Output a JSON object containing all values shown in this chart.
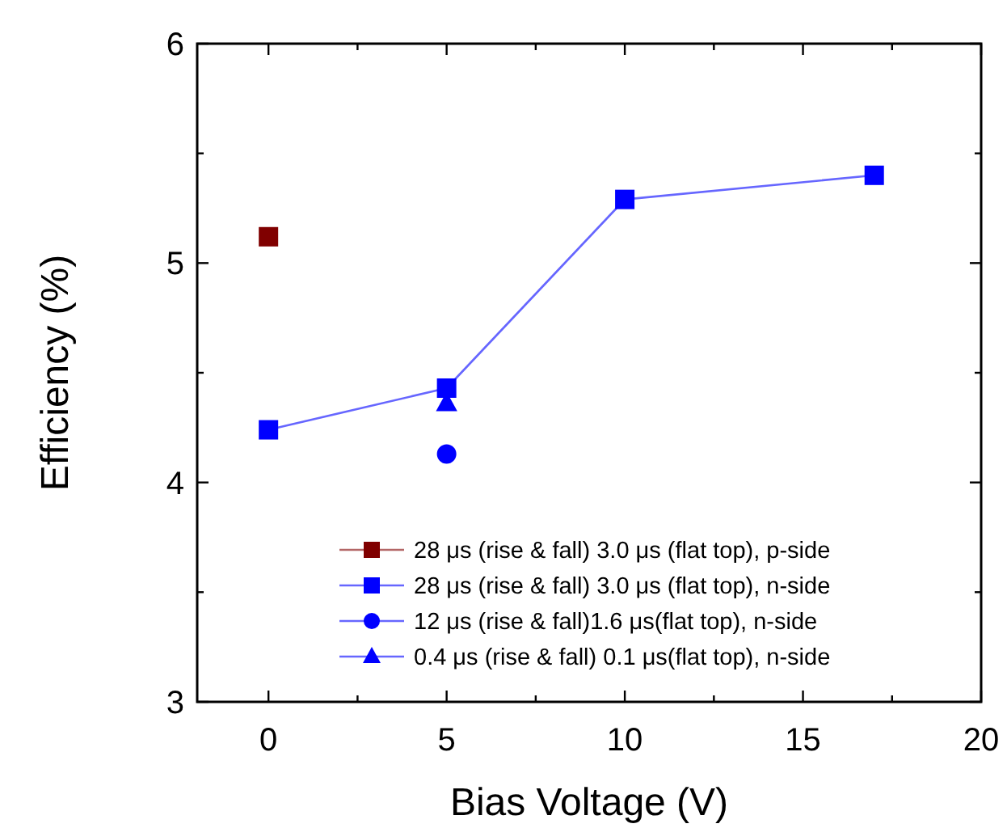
{
  "chart_data": {
    "type": "line",
    "xlabel": "Bias Voltage (V)",
    "ylabel": "Efficiency (%)",
    "xlim": [
      -2,
      20
    ],
    "xticks": [
      0,
      {
        "value": 2.5,
        "label": null
      },
      5,
      {
        "value": 7.5,
        "label": null
      },
      10,
      {
        "value": 12.5,
        "label": null
      },
      15,
      {
        "value": 17.5,
        "label": null
      },
      20
    ],
    "ylim": [
      3,
      6
    ],
    "yticks": [
      3,
      {
        "value": 3.5,
        "label": null
      },
      4,
      {
        "value": 4.5,
        "label": null
      },
      5,
      {
        "value": 5.5,
        "label": null
      },
      6
    ],
    "grid": false,
    "legend": "bottom right",
    "series": [
      {
        "name": "28 μs (rise & fall) 3.0 μs (flat top), p-side",
        "color": "#800000",
        "marker": "square",
        "x": [
          0
        ],
        "values": [
          5.12
        ]
      },
      {
        "name": "28 μs (rise & fall) 3.0 μs (flat top), n-side",
        "color": "#0000ff",
        "marker": "square",
        "x": [
          0,
          5,
          10,
          17
        ],
        "values": [
          4.24,
          4.43,
          5.29,
          5.4
        ]
      },
      {
        "name": "12 μs (rise & fall)1.6 μs(flat top), n-side",
        "color": "#0000ff",
        "marker": "circle",
        "x": [
          5
        ],
        "values": [
          4.13
        ]
      },
      {
        "name": "0.4 μs (rise & fall) 0.1 μs(flat top), n-side",
        "color": "#0000ff",
        "marker": "triangle",
        "x": [
          5
        ],
        "values": [
          4.36
        ]
      }
    ]
  }
}
